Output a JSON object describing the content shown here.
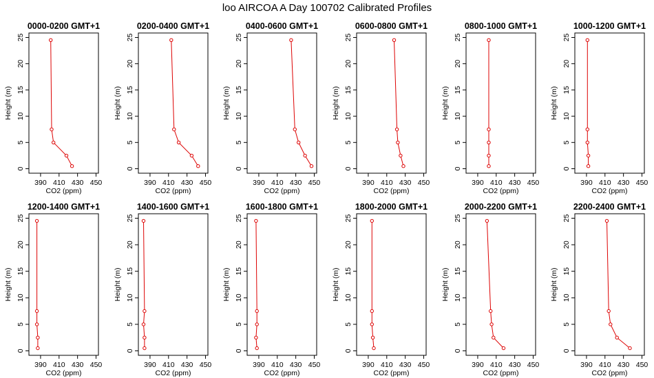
{
  "figure": {
    "title": "loo AIRCOA A  Day 100702  Calibrated Profiles"
  },
  "style": {
    "line_color": "#dd0000",
    "marker": "open-circle",
    "background": "#ffffff",
    "axis_color": "#000000"
  },
  "chart_data": [
    {
      "type": "line",
      "title": "0000-0200 GMT+1",
      "xlabel": "CO2 (ppm)",
      "ylabel": "Height (m)",
      "xlim": [
        380,
        450
      ],
      "ylim": [
        0,
        25
      ],
      "xticks": [
        390,
        410,
        430,
        450
      ],
      "yticks": [
        0,
        5,
        10,
        15,
        20,
        25
      ],
      "x": [
        424,
        418,
        404,
        402,
        401
      ],
      "y": [
        0.5,
        2.5,
        5,
        7.5,
        24.5
      ]
    },
    {
      "type": "line",
      "title": "0200-0400 GMT+1",
      "xlabel": "CO2 (ppm)",
      "ylabel": "Height (m)",
      "xlim": [
        380,
        450
      ],
      "ylim": [
        0,
        25
      ],
      "xticks": [
        390,
        410,
        430,
        450
      ],
      "yticks": [
        0,
        5,
        10,
        15,
        20,
        25
      ],
      "x": [
        442,
        435,
        421,
        416,
        413
      ],
      "y": [
        0.5,
        2.5,
        5,
        7.5,
        24.5
      ]
    },
    {
      "type": "line",
      "title": "0400-0600 GMT+1",
      "xlabel": "CO2 (ppm)",
      "ylabel": "Height (m)",
      "xlim": [
        380,
        450
      ],
      "ylim": [
        0,
        25
      ],
      "xticks": [
        390,
        410,
        430,
        450
      ],
      "yticks": [
        0,
        5,
        10,
        15,
        20,
        25
      ],
      "x": [
        447,
        440,
        433,
        429,
        425
      ],
      "y": [
        0.5,
        2.5,
        5,
        7.5,
        24.5
      ]
    },
    {
      "type": "line",
      "title": "0600-0800 GMT+1",
      "xlabel": "CO2 (ppm)",
      "ylabel": "Height (m)",
      "xlim": [
        380,
        450
      ],
      "ylim": [
        0,
        25
      ],
      "xticks": [
        390,
        410,
        430,
        450
      ],
      "yticks": [
        0,
        5,
        10,
        15,
        20,
        25
      ],
      "x": [
        428,
        425,
        422,
        421,
        418
      ],
      "y": [
        0.5,
        2.5,
        5,
        7.5,
        24.5
      ]
    },
    {
      "type": "line",
      "title": "0800-1000 GMT+1",
      "xlabel": "CO2 (ppm)",
      "ylabel": "Height (m)",
      "xlim": [
        380,
        450
      ],
      "ylim": [
        0,
        25
      ],
      "xticks": [
        390,
        410,
        430,
        450
      ],
      "yticks": [
        0,
        5,
        10,
        15,
        20,
        25
      ],
      "x": [
        402,
        402,
        402,
        402,
        402
      ],
      "y": [
        0.5,
        2.5,
        5,
        7.5,
        24.5
      ]
    },
    {
      "type": "line",
      "title": "1000-1200 GMT+1",
      "xlabel": "CO2 (ppm)",
      "ylabel": "Height (m)",
      "xlim": [
        380,
        450
      ],
      "ylim": [
        0,
        25
      ],
      "xticks": [
        390,
        410,
        430,
        450
      ],
      "yticks": [
        0,
        5,
        10,
        15,
        20,
        25
      ],
      "x": [
        392,
        392,
        391,
        391,
        391
      ],
      "y": [
        0.5,
        2.5,
        5,
        7.5,
        24.5
      ]
    },
    {
      "type": "line",
      "title": "1200-1400 GMT+1",
      "xlabel": "CO2 (ppm)",
      "ylabel": "Height (m)",
      "xlim": [
        380,
        450
      ],
      "ylim": [
        0,
        25
      ],
      "xticks": [
        390,
        410,
        430,
        450
      ],
      "yticks": [
        0,
        5,
        10,
        15,
        20,
        25
      ],
      "x": [
        387,
        387,
        386,
        386,
        386
      ],
      "y": [
        0.5,
        2.5,
        5,
        7.5,
        24.5
      ]
    },
    {
      "type": "line",
      "title": "1400-1600 GMT+1",
      "xlabel": "CO2 (ppm)",
      "ylabel": "Height (m)",
      "xlim": [
        380,
        450
      ],
      "ylim": [
        0,
        25
      ],
      "xticks": [
        390,
        410,
        430,
        450
      ],
      "yticks": [
        0,
        5,
        10,
        15,
        20,
        25
      ],
      "x": [
        384,
        384,
        383,
        384,
        383
      ],
      "y": [
        0.5,
        2.5,
        5,
        7.5,
        24.5
      ]
    },
    {
      "type": "line",
      "title": "1600-1800 GMT+1",
      "xlabel": "CO2 (ppm)",
      "ylabel": "Height (m)",
      "xlim": [
        380,
        450
      ],
      "ylim": [
        0,
        25
      ],
      "xticks": [
        390,
        410,
        430,
        450
      ],
      "yticks": [
        0,
        5,
        10,
        15,
        20,
        25
      ],
      "x": [
        388,
        387,
        388,
        388,
        387
      ],
      "y": [
        0.5,
        2.5,
        5,
        7.5,
        24.5
      ]
    },
    {
      "type": "line",
      "title": "1800-2000 GMT+1",
      "xlabel": "CO2 (ppm)",
      "ylabel": "Height (m)",
      "xlim": [
        380,
        450
      ],
      "ylim": [
        0,
        25
      ],
      "xticks": [
        390,
        410,
        430,
        450
      ],
      "yticks": [
        0,
        5,
        10,
        15,
        20,
        25
      ],
      "x": [
        396,
        395,
        394,
        394,
        394
      ],
      "y": [
        0.5,
        2.5,
        5,
        7.5,
        24.5
      ]
    },
    {
      "type": "line",
      "title": "2000-2200 GMT+1",
      "xlabel": "CO2 (ppm)",
      "ylabel": "Height (m)",
      "xlim": [
        380,
        450
      ],
      "ylim": [
        0,
        25
      ],
      "xticks": [
        390,
        410,
        430,
        450
      ],
      "yticks": [
        0,
        5,
        10,
        15,
        20,
        25
      ],
      "x": [
        418,
        407,
        405,
        404,
        400
      ],
      "y": [
        0.5,
        2.5,
        5,
        7.5,
        24.5
      ]
    },
    {
      "type": "line",
      "title": "2200-2400 GMT+1",
      "xlabel": "CO2 (ppm)",
      "ylabel": "Height (m)",
      "xlim": [
        380,
        450
      ],
      "ylim": [
        0,
        25
      ],
      "xticks": [
        390,
        410,
        430,
        450
      ],
      "yticks": [
        0,
        5,
        10,
        15,
        20,
        25
      ],
      "x": [
        437,
        423,
        416,
        414,
        412
      ],
      "y": [
        0.5,
        2.5,
        5,
        7.5,
        24.5
      ]
    }
  ]
}
